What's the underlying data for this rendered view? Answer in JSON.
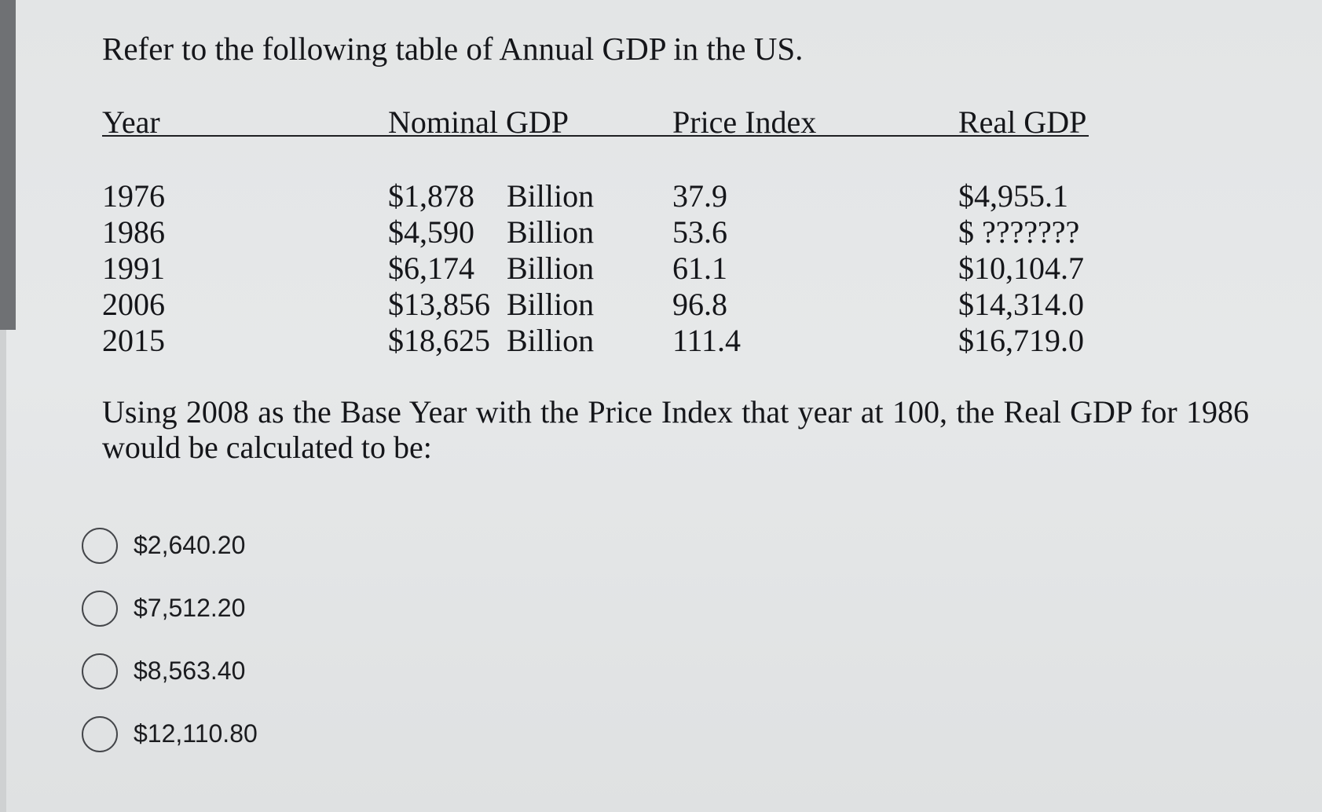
{
  "question": {
    "title": "Refer to the following table of Annual GDP in the US.",
    "prompt": "Using 2008 as the Base Year with the Price Index that year at 100, the Real GDP for 1986 would be calculated to be:"
  },
  "table": {
    "headers": {
      "year": "Year",
      "nominal_gdp": "Nominal GDP",
      "price_index": "Price Index",
      "real_gdp": "Real GDP"
    },
    "rows": [
      {
        "year": "1976",
        "nominal": "$1,878",
        "unit": "Billion",
        "price_index": "37.9",
        "real_gdp": "$4,955.1"
      },
      {
        "year": "1986",
        "nominal": "$4,590",
        "unit": "Billion",
        "price_index": "53.6",
        "real_gdp": "$ ???????"
      },
      {
        "year": "1991",
        "nominal": "$6,174",
        "unit": "Billion",
        "price_index": "61.1",
        "real_gdp": "$10,104.7"
      },
      {
        "year": "2006",
        "nominal": "$13,856",
        "unit": "Billion",
        "price_index": "96.8",
        "real_gdp": "$14,314.0"
      },
      {
        "year": "2015",
        "nominal": "$18,625",
        "unit": "Billion",
        "price_index": "111.4",
        "real_gdp": "$16,719.0"
      }
    ]
  },
  "options": [
    {
      "label": "$2,640.20",
      "selected": false
    },
    {
      "label": "$7,512.20",
      "selected": false
    },
    {
      "label": "$8,563.40",
      "selected": false
    },
    {
      "label": "$12,110.80",
      "selected": false
    }
  ]
}
